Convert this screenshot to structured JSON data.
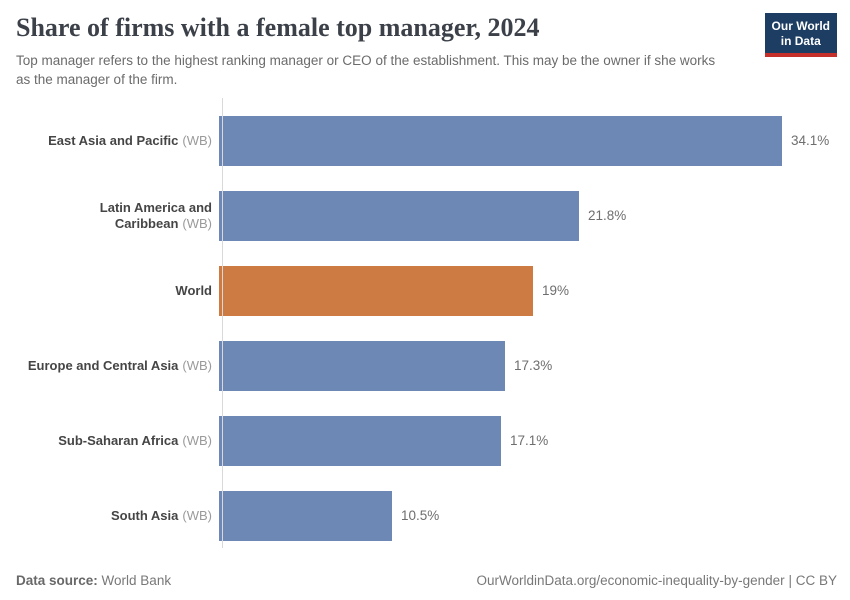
{
  "header": {
    "title": "Share of firms with a female top manager, 2024",
    "subtitle": "Top manager refers to the highest ranking manager or CEO of the establishment. This may be the owner if she works as the manager of the firm."
  },
  "logo": {
    "line1": "Our World",
    "line2": "in Data",
    "bg_color": "#1d3d63",
    "accent_color": "#c5302b"
  },
  "chart_data": {
    "type": "bar",
    "orientation": "horizontal",
    "title": "Share of firms with a female top manager, 2024",
    "xlabel": "",
    "ylabel": "",
    "xlim": [
      0,
      35
    ],
    "grid": false,
    "legend": false,
    "bar_color": "#6d88b5",
    "highlight_color": "#cd7b43",
    "categories": [
      "East Asia and Pacific (WB)",
      "Latin America and Caribbean (WB)",
      "World",
      "Europe and Central Asia (WB)",
      "Sub-Saharan Africa (WB)",
      "South Asia (WB)"
    ],
    "values": [
      34.1,
      21.8,
      19,
      17.3,
      17.1,
      10.5
    ],
    "rows": [
      {
        "name": "East Asia and Pacific",
        "qualifier": "(WB)",
        "value": 34.1,
        "value_label": "34.1%",
        "highlight": false
      },
      {
        "name": "Latin America and Caribbean",
        "qualifier": "(WB)",
        "value": 21.8,
        "value_label": "21.8%",
        "highlight": false
      },
      {
        "name": "World",
        "qualifier": "",
        "value": 19,
        "value_label": "19%",
        "highlight": true
      },
      {
        "name": "Europe and Central Asia",
        "qualifier": "(WB)",
        "value": 17.3,
        "value_label": "17.3%",
        "highlight": false
      },
      {
        "name": "Sub-Saharan Africa",
        "qualifier": "(WB)",
        "value": 17.1,
        "value_label": "17.1%",
        "highlight": false
      },
      {
        "name": "South Asia",
        "qualifier": "(WB)",
        "value": 10.5,
        "value_label": "10.5%",
        "highlight": false
      }
    ]
  },
  "footer": {
    "source_label": "Data source:",
    "source_value": "World Bank",
    "link": "OurWorldinData.org/economic-inequality-by-gender",
    "separator": "|",
    "license": "CC BY"
  }
}
